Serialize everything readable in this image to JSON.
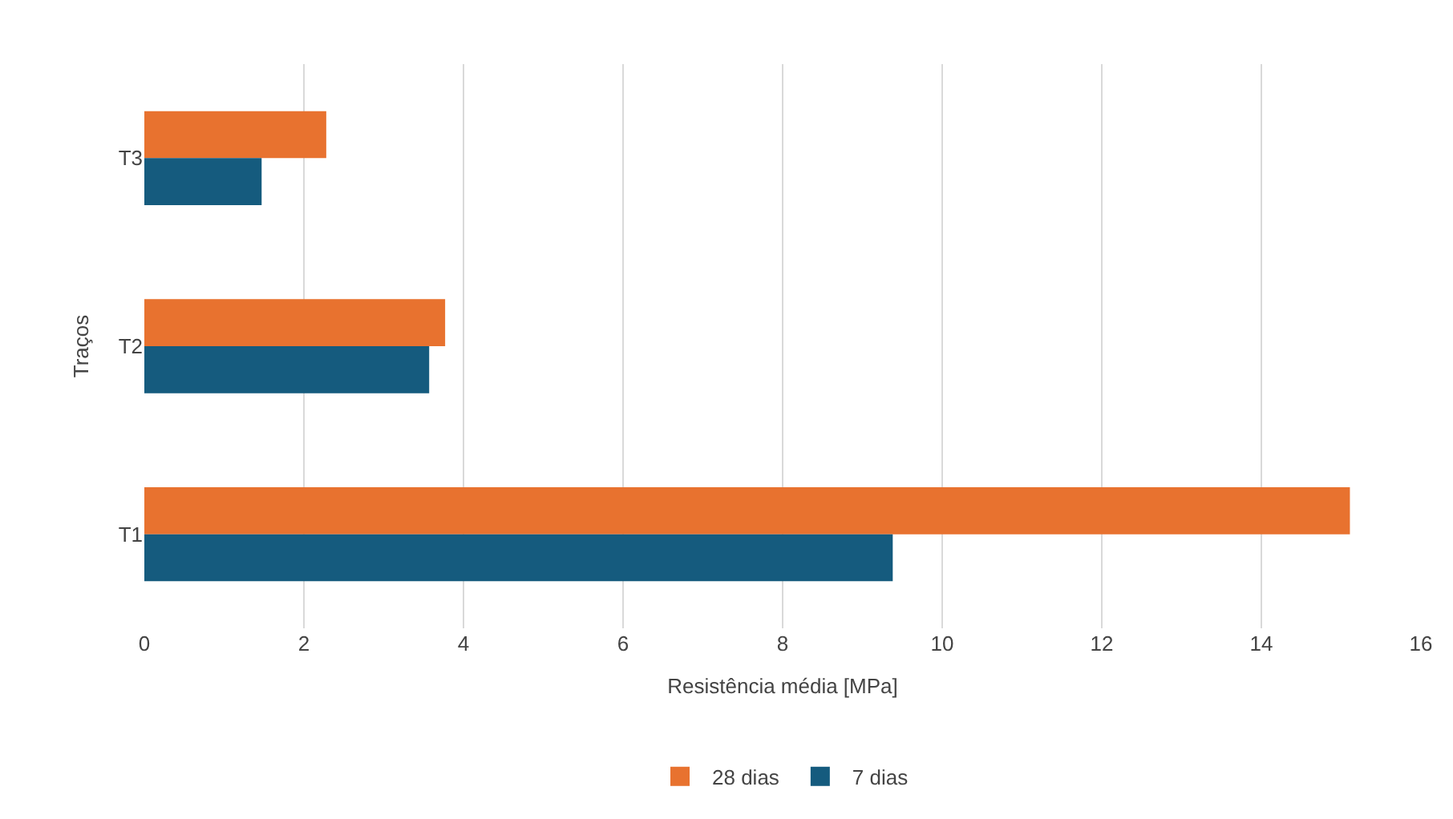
{
  "chart_data": {
    "type": "bar",
    "orientation": "horizontal",
    "xlabel": "Resistência média [MPa]",
    "ylabel": "Traços",
    "categories": [
      "T3",
      "T2",
      "T1"
    ],
    "series": [
      {
        "name": "28 dias",
        "color": "#e8722f",
        "values": [
          2.28,
          3.77,
          15.11
        ]
      },
      {
        "name": "7 dias",
        "color": "#155b7e",
        "values": [
          1.47,
          3.57,
          9.38
        ]
      }
    ],
    "xlim": [
      0,
      16
    ],
    "xticks": [
      0,
      2,
      4,
      6,
      8,
      10,
      12,
      14,
      16
    ],
    "grid": "x",
    "legend": "bottom"
  }
}
